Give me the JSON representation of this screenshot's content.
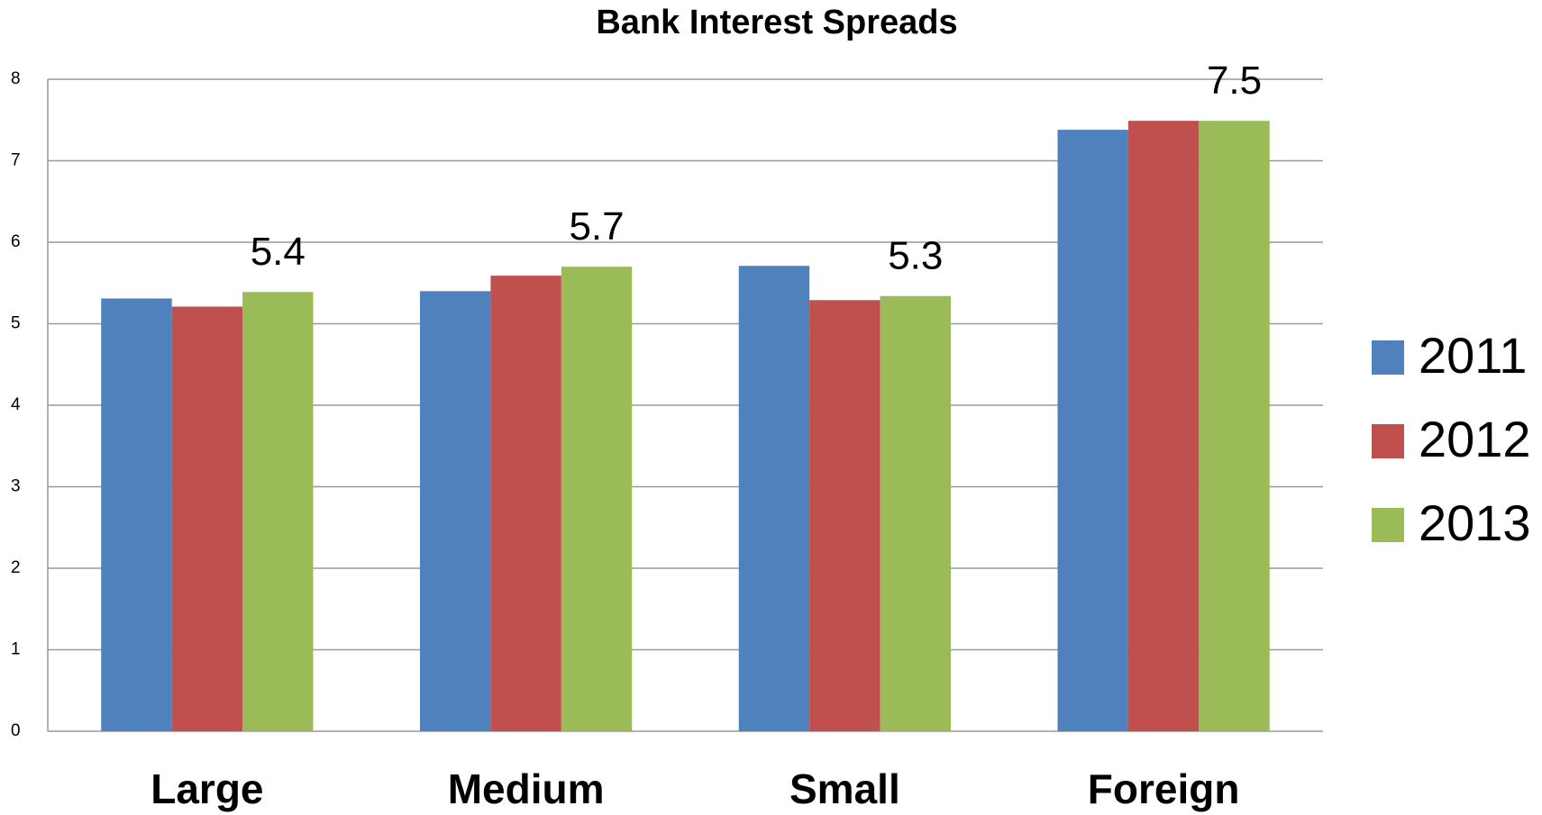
{
  "chart_data": {
    "type": "bar",
    "title": "Bank Interest Spreads",
    "categories": [
      "Large",
      "Medium",
      "Small",
      "Foreign"
    ],
    "series": [
      {
        "name": "2011",
        "color": "#4f81bd",
        "values": [
          5.31,
          5.4,
          5.71,
          7.38
        ]
      },
      {
        "name": "2012",
        "color": "#c0504d",
        "values": [
          5.21,
          5.59,
          5.29,
          7.49
        ]
      },
      {
        "name": "2013",
        "color": "#9bbb59",
        "values": [
          5.39,
          5.7,
          5.34,
          7.49
        ],
        "value_labels": [
          "5.4",
          "5.7",
          "5.3",
          "7.5"
        ]
      }
    ],
    "ylim": [
      0,
      8
    ],
    "yticks": [
      0,
      1,
      2,
      3,
      4,
      5,
      6,
      7,
      8
    ],
    "grid": true,
    "legend": "right"
  }
}
